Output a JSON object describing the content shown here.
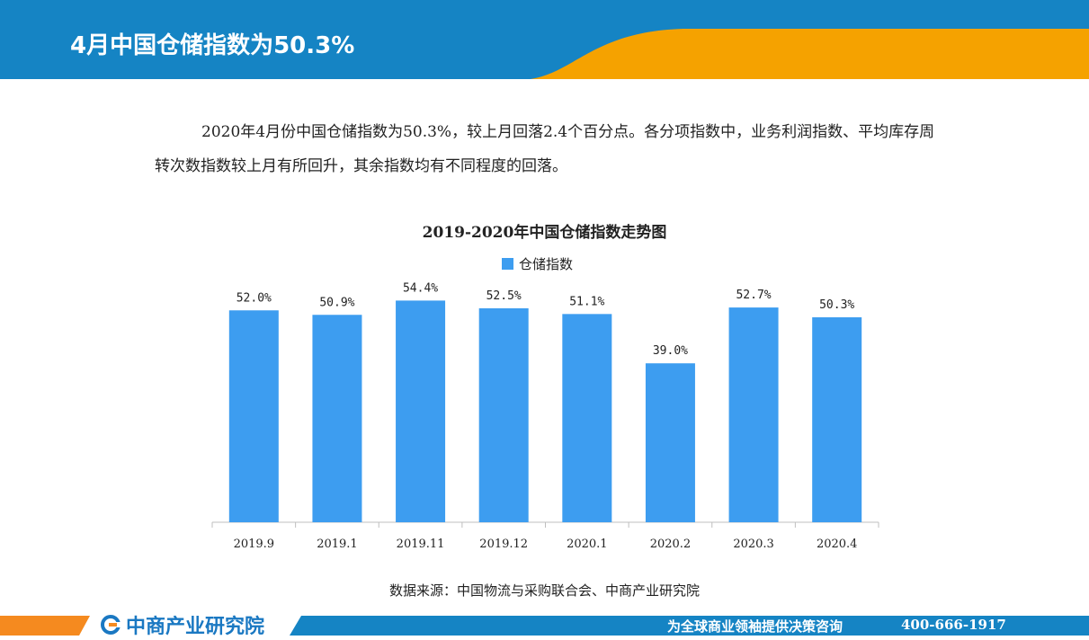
{
  "header": {
    "title": "4月中国仓储指数为50.3%",
    "colors": {
      "blue": "#1584c4",
      "orange": "#f5a200"
    }
  },
  "intro": {
    "text": "2020年4月份中国仓储指数为50.3%，较上月回落2.4个百分点。各分项指数中，业务利润指数、平均库存周转次数指数较上月有所回升，其余指数均有不同程度的回落。"
  },
  "chart_data": {
    "type": "bar",
    "title": "2019-2020年中国仓储指数走势图",
    "categories": [
      "2019.9",
      "2019.1",
      "2019.11",
      "2019.12",
      "2020.1",
      "2020.2",
      "2020.3",
      "2020.4"
    ],
    "series": [
      {
        "name": "仓储指数",
        "values": [
          52.0,
          50.9,
          54.4,
          52.5,
          51.1,
          39.0,
          52.7,
          50.3
        ],
        "color": "#3d9df0"
      }
    ],
    "value_labels": [
      "52.0%",
      "50.9%",
      "54.4%",
      "52.5%",
      "51.1%",
      "39.0%",
      "52.7%",
      "50.3%"
    ],
    "ylim": [
      0,
      60
    ],
    "grid": false,
    "legend_position": "top-center"
  },
  "source": "数据来源：中国物流与采购联合会、中商产业研究院",
  "footer": {
    "brand": "中商产业研究院",
    "slogan": "为全球商业领袖提供决策咨询",
    "phone": "400-666-1917"
  }
}
